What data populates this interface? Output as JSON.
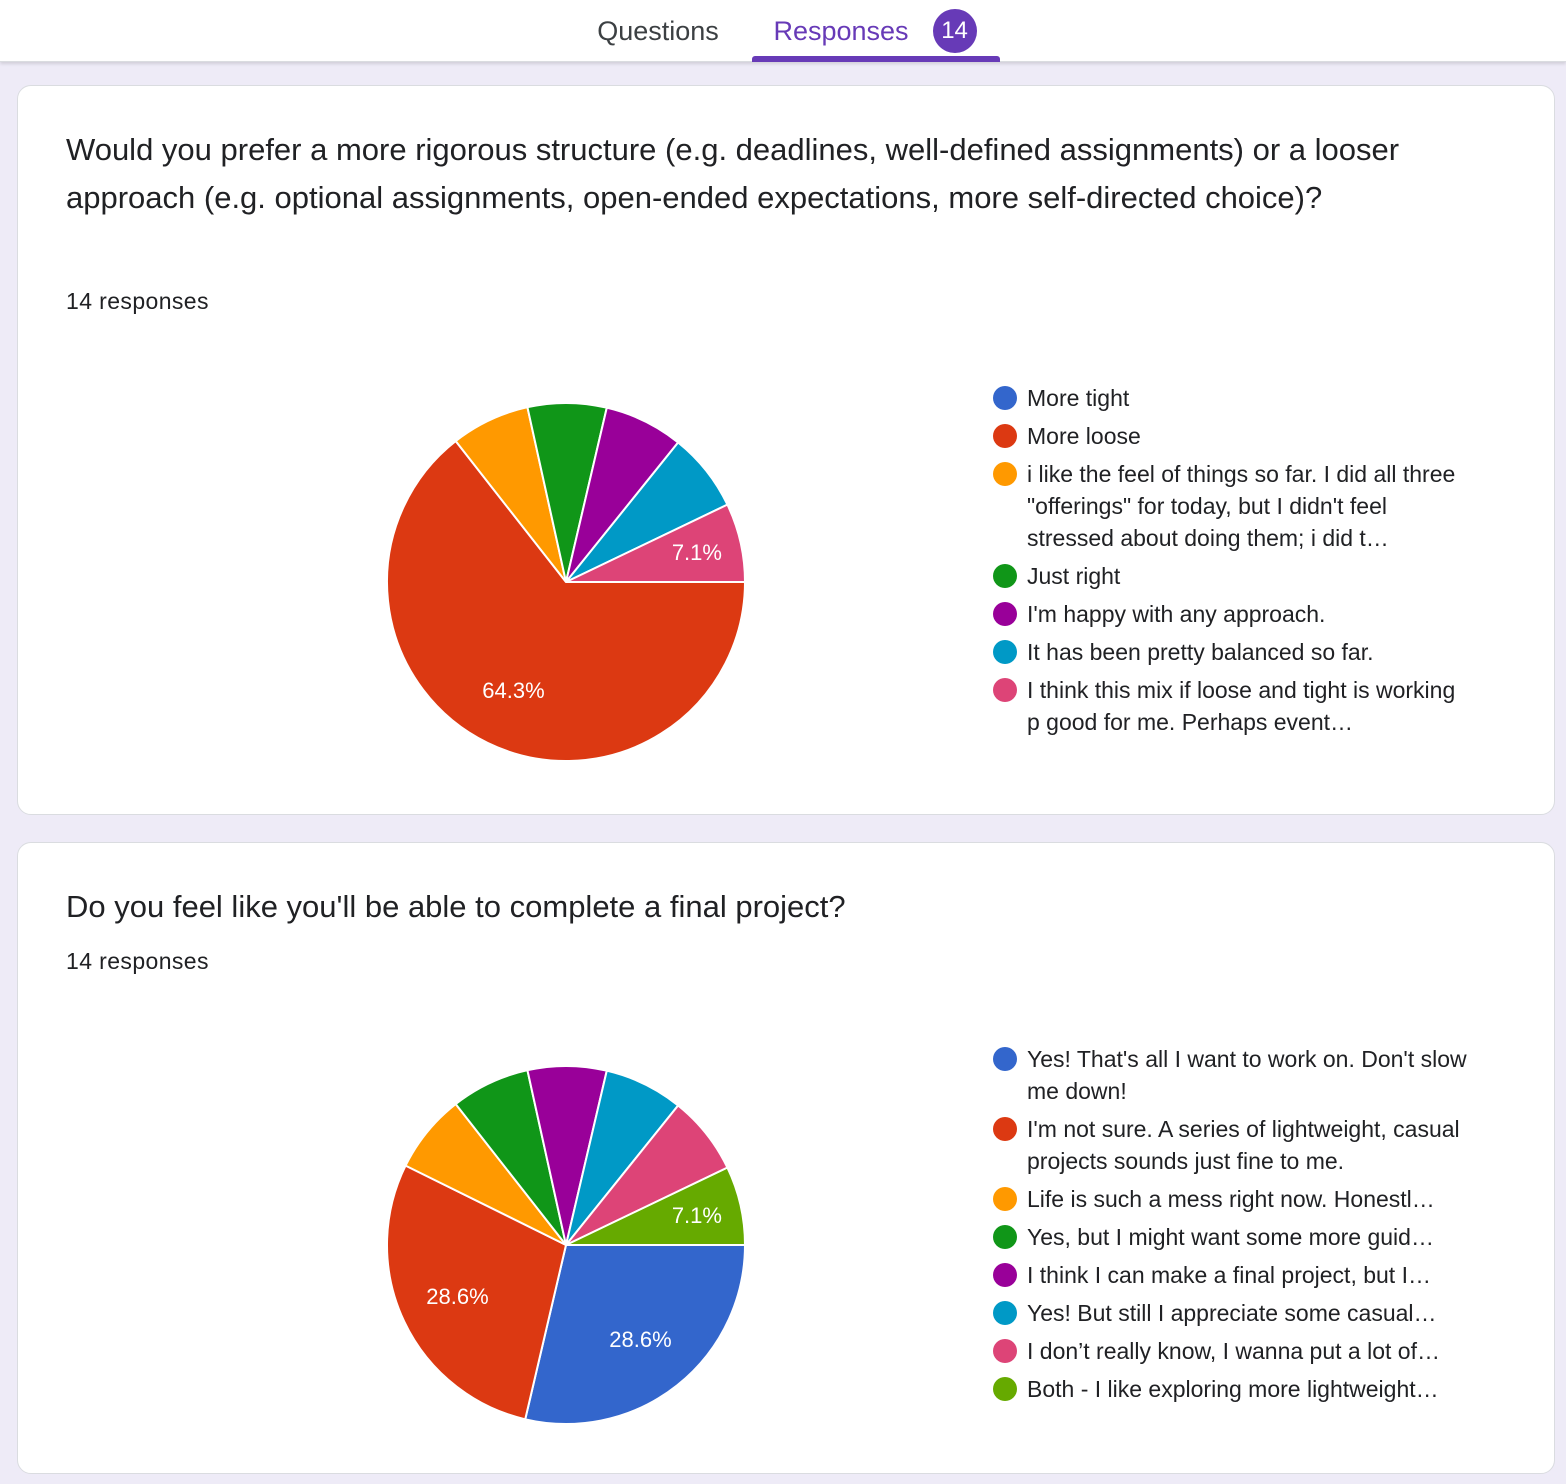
{
  "tabs": {
    "questions_label": "Questions",
    "responses_label": "Responses",
    "responses_count": "14"
  },
  "colors": {
    "accent": "#673ab7",
    "series": [
      "#3366cc",
      "#dc3912",
      "#ff9900",
      "#109618",
      "#990099",
      "#0099c6",
      "#dd4477",
      "#66aa00"
    ]
  },
  "questions": [
    {
      "title": "Would you prefer a more rigorous structure (e.g. deadlines, well-defined assignments) or a looser approach (e.g. optional assignments, open-ended expectations, more self-directed choice)?",
      "responses_text": "14 responses",
      "legend": [
        "More tight",
        "More loose",
        "i like the feel of things so far. I did all three \"offerings\" for today, but I didn't feel stressed about doing them; i did t…",
        "Just right",
        "I'm happy with any approach.",
        "It has been pretty balanced so far.",
        "I think this mix if loose and tight is working p good for me. Perhaps event…"
      ],
      "slice_labels": [
        "64.3%",
        "7.1%"
      ]
    },
    {
      "title": "Do you feel like you'll be able to complete a final project?",
      "responses_text": "14 responses",
      "legend": [
        "Yes! That's all I want to work on. Don't slow me down!",
        "I'm not sure. A series of lightweight, casual projects sounds just fine to me.",
        "Life is such a mess right now. Honestl…",
        "Yes, but I might want some more guid…",
        "I think I can make a final project, but I…",
        "Yes! But still I appreciate some casual…",
        "I don’t really know, I wanna put a lot of…",
        "Both - I like exploring more lightweight…"
      ],
      "slice_labels": [
        "28.6%",
        "28.6%",
        "7.1%"
      ]
    }
  ],
  "chart_data": [
    {
      "type": "pie",
      "categories": [
        "More tight",
        "More loose",
        "i like the feel of things so far. I did all three \"offerings\" for today, but I didn't feel stressed about doing them; i did t…",
        "Just right",
        "I'm happy with any approach.",
        "It has been pretty balanced so far.",
        "I think this mix if loose and tight is working p good for me. Perhaps event…"
      ],
      "values": [
        0,
        64.3,
        7.1,
        7.1,
        7.1,
        7.1,
        7.1
      ],
      "colors": [
        "#3366cc",
        "#dc3912",
        "#ff9900",
        "#109618",
        "#990099",
        "#0099c6",
        "#dd4477"
      ],
      "labels_shown": [
        "",
        "64.3%",
        "",
        "",
        "",
        "",
        "7.1%"
      ],
      "legend_position": "right"
    },
    {
      "type": "pie",
      "categories": [
        "Yes! That's all I want to work on. Don't slow me down!",
        "I'm not sure. A series of lightweight, casual projects sounds just fine to me.",
        "Life is such a mess right now. Honestl…",
        "Yes, but I might want some more guid…",
        "I think I can make a final project, but I…",
        "Yes! But still I appreciate some casual…",
        "I don’t really know, I wanna put a lot of…",
        "Both - I like exploring more lightweight…"
      ],
      "values": [
        28.6,
        28.6,
        7.1,
        7.1,
        7.1,
        7.1,
        7.1,
        7.1
      ],
      "colors": [
        "#3366cc",
        "#dc3912",
        "#ff9900",
        "#109618",
        "#990099",
        "#0099c6",
        "#dd4477",
        "#66aa00"
      ],
      "labels_shown": [
        "28.6%",
        "28.6%",
        "",
        "",
        "",
        "",
        "",
        "7.1%"
      ],
      "legend_position": "right"
    }
  ]
}
